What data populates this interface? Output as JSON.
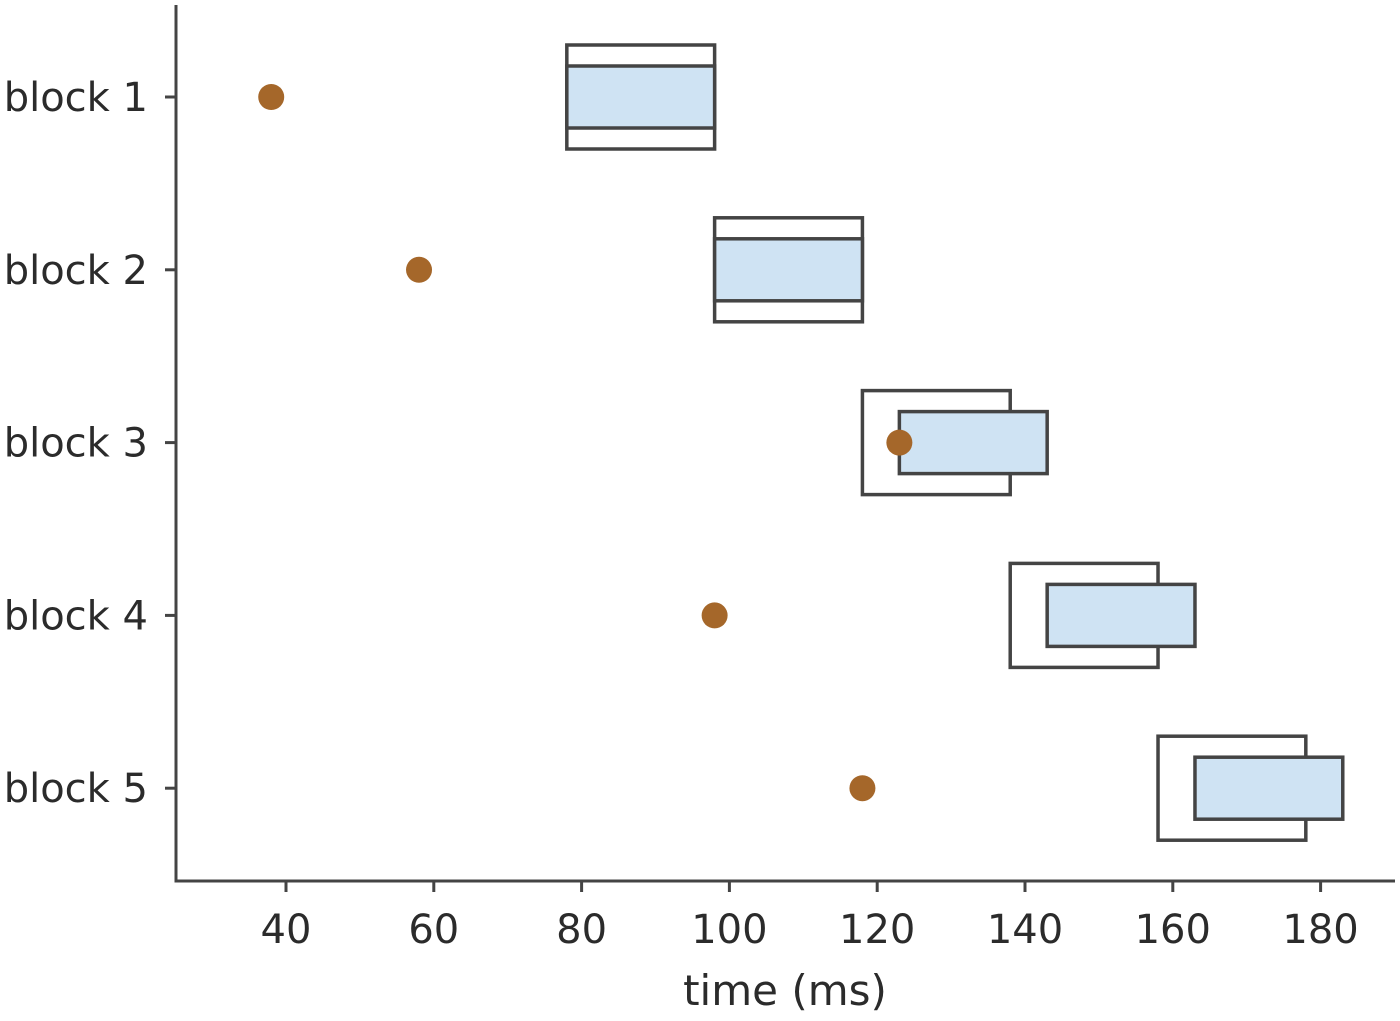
{
  "chart_data": {
    "type": "scatter",
    "title": "",
    "xlabel": "time (ms)",
    "ylabel": "",
    "xlim": [
      25,
      190
    ],
    "xticks": [
      40,
      60,
      80,
      100,
      120,
      140,
      160,
      180
    ],
    "categories": [
      "block 1",
      "block 2",
      "block 3",
      "block 4",
      "block 5"
    ],
    "grid": false,
    "outer_intervals": [
      {
        "start": 78,
        "end": 98
      },
      {
        "start": 98,
        "end": 118
      },
      {
        "start": 118,
        "end": 138
      },
      {
        "start": 138,
        "end": 158
      },
      {
        "start": 158,
        "end": 178
      }
    ],
    "inner_intervals": [
      {
        "start": 78,
        "end": 98
      },
      {
        "start": 98,
        "end": 118
      },
      {
        "start": 123,
        "end": 143
      },
      {
        "start": 143,
        "end": 163
      },
      {
        "start": 163,
        "end": 183
      }
    ],
    "points": [
      38,
      58,
      123,
      98,
      118
    ],
    "colors": {
      "inner_fill": "#cfe3f3",
      "outline": "#444444",
      "point": "#a5672a"
    }
  }
}
